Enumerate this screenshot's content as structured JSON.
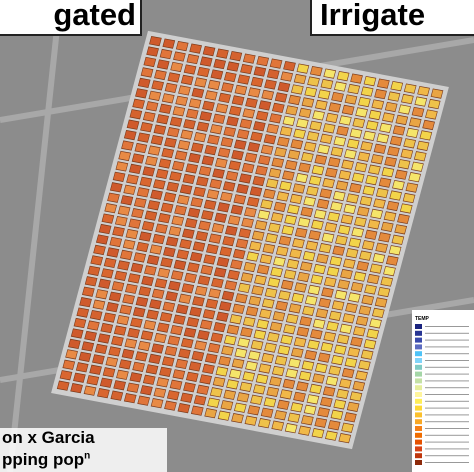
{
  "labels": {
    "left": "gated",
    "right": "Irrigate"
  },
  "caption": {
    "line1": "on x Garcia",
    "line2": "pping pop",
    "line2_superscript": "n"
  },
  "legend": {
    "title": "TEMP"
  }
}
